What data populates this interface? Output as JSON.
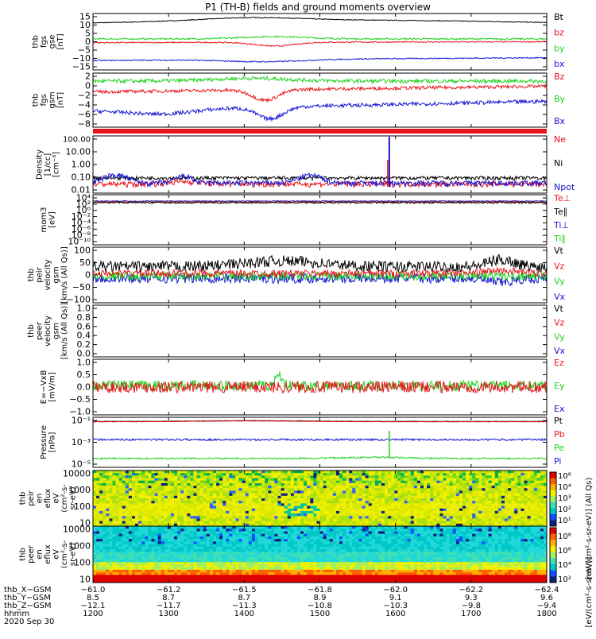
{
  "title": "P1 (TH-B) fields and ground moments overview",
  "colors": {
    "black": "#000000",
    "red": "#e8141b",
    "green": "#1ed21e",
    "blue": "#1414d2",
    "dkblue": "#2020a0",
    "lightgreen": "#33dd33",
    "frame": "#000000"
  },
  "panels": [
    {
      "id": "fgs",
      "ylabel": [
        "thb",
        "fgs",
        "gse",
        "[nT]"
      ],
      "ticks": [
        "15",
        "10",
        "5",
        "0",
        "−5",
        "−10",
        "−15"
      ],
      "legend": [
        {
          "text": "Bt",
          "color": "#000000"
        },
        {
          "text": "bz",
          "color": "#e8141b"
        },
        {
          "text": "by",
          "color": "#1ed21e"
        },
        {
          "text": "bx",
          "color": "#1414d2"
        }
      ]
    },
    {
      "id": "fgs_gsm",
      "ylabel": [
        "thb",
        "fgs",
        "gsm",
        "[nT]"
      ],
      "ticks": [
        "2",
        "0",
        "−2",
        "−4",
        "−6",
        "−8"
      ],
      "legend": [
        {
          "text": "Bz",
          "color": "#e8141b"
        },
        {
          "text": "By",
          "color": "#1ed21e"
        },
        {
          "text": "Bx",
          "color": "#1414d2"
        }
      ]
    },
    {
      "id": "density",
      "ylabel": [
        "Density",
        "[1/cc]",
        "[cm⁻³]"
      ],
      "ticks": [
        "100.00",
        "10.00",
        "1.00",
        "0.10",
        "0.01"
      ],
      "legend": [
        {
          "text": "Ne",
          "color": "#e8141b"
        },
        {
          "text": "Ni",
          "color": "#000000"
        },
        {
          "text": "Npot",
          "color": "#1414d2"
        }
      ]
    },
    {
      "id": "temp",
      "ylabel": [
        "mom3",
        "[eV]"
      ],
      "ticks": [
        "10⁴",
        "10²",
        "10⁰",
        "10⁻²",
        "10⁻⁴",
        "10⁻⁶",
        "10⁻⁸",
        "10⁻¹⁰"
      ],
      "legend": [
        {
          "text": "Te⊥",
          "color": "#e8141b"
        },
        {
          "text": "Te∥",
          "color": "#000000"
        },
        {
          "text": "Ti⊥",
          "color": "#1414d2"
        },
        {
          "text": "Ti∥",
          "color": "#1ed21e"
        }
      ]
    },
    {
      "id": "vel1",
      "ylabel": [
        "thb",
        "peir",
        "velocity",
        "gsm",
        "[km/s (All Qs)]"
      ],
      "ticks": [
        "100",
        "50",
        "0",
        "−50",
        "−100"
      ],
      "legend": [
        {
          "text": "Vt",
          "color": "#000000"
        },
        {
          "text": "Vz",
          "color": "#e8141b"
        },
        {
          "text": "Vy",
          "color": "#1ed21e"
        },
        {
          "text": "Vx",
          "color": "#1414d2"
        }
      ]
    },
    {
      "id": "vel2",
      "ylabel": [
        "thb",
        "peer",
        "velocity",
        "gsm",
        "[km/s (All Qs)]"
      ],
      "ticks": [
        "1.0",
        "0.8",
        "0.6",
        "0.4",
        "0.2",
        "0.0"
      ],
      "legend": [
        {
          "text": "Vt",
          "color": "#000000"
        },
        {
          "text": "Vz",
          "color": "#e8141b"
        },
        {
          "text": "Vy",
          "color": "#1ed21e"
        },
        {
          "text": "Vx",
          "color": "#1414d2"
        }
      ]
    },
    {
      "id": "efield",
      "ylabel": [
        "E=−VxB",
        "[mV/m]"
      ],
      "ticks": [
        "1.0",
        "0.5",
        "0.0",
        "−0.5",
        "−1.0"
      ],
      "legend": [
        {
          "text": "Ez",
          "color": "#e8141b"
        },
        {
          "text": "Ey",
          "color": "#1ed21e"
        },
        {
          "text": "Ex",
          "color": "#1414d2"
        }
      ]
    },
    {
      "id": "pressure",
      "ylabel": [
        "Pressure",
        "[nPa]"
      ],
      "ticks": [
        "10⁻¹",
        "10⁻³",
        "10⁻⁵"
      ],
      "legend": [
        {
          "text": "Pt",
          "color": "#000000"
        },
        {
          "text": "Pb",
          "color": "#e8141b"
        },
        {
          "text": "Pe",
          "color": "#1ed21e"
        },
        {
          "text": "Pi",
          "color": "#1414d2"
        }
      ]
    },
    {
      "id": "spec_ion",
      "ylabel": [
        "thb",
        "peir",
        "en",
        "eflux",
        "eV",
        "(cm²-s-",
        "sr-eV)"
      ],
      "ticks": [
        "10000",
        "1000",
        "100",
        "10"
      ]
    },
    {
      "id": "spec_ele",
      "ylabel": [
        "thb",
        "peer",
        "en",
        "eflux",
        "eV",
        "(cm²-s-",
        "sr-eV)"
      ],
      "ticks": [
        "10000",
        "1000",
        "100",
        "10"
      ]
    }
  ],
  "colorbar_upper": {
    "ticks": [
      "10⁶",
      "10⁴",
      "10³",
      "10²",
      "10¹"
    ],
    "label": "[eV/(cm²-s-sr-eV)] (All Qs)"
  },
  "colorbar_lower": {
    "ticks": [
      "10⁸",
      "10⁶",
      "10⁴",
      "10²"
    ]
  },
  "colorbar_label": "[eV/(cm²-s-sr-eV)]",
  "x_axis": {
    "row_labels": [
      "thb_X−GSM",
      "thb_Y−GSM",
      "thb_Z−GSM",
      "hhmm",
      "2020 Sep 30"
    ],
    "columns": [
      {
        "x": "−61.0",
        "y": "8.5",
        "z": "−12.1",
        "hhmm": "1200"
      },
      {
        "x": "−61.2",
        "y": "8.7",
        "z": "−11.7",
        "hhmm": "1300"
      },
      {
        "x": "−61.5",
        "y": "8.7",
        "z": "−11.3",
        "hhmm": "1400"
      },
      {
        "x": "−61.8",
        "y": "8.9",
        "z": "−10.8",
        "hhmm": "1500"
      },
      {
        "x": "−62.0",
        "y": "9.1",
        "z": "−10.3",
        "hhmm": "1600"
      },
      {
        "x": "−62.2",
        "y": "9.3",
        "z": "−9.8",
        "hhmm": "1700"
      },
      {
        "x": "−62.4",
        "y": "9.6",
        "z": "−9.4",
        "hhmm": "1800"
      }
    ]
  },
  "chart_data": [
    {
      "type": "line",
      "name": "thb fgs gse",
      "ylabel": "thb fgs gse [nT]",
      "x_hhmm": [
        1200,
        1300,
        1400,
        1500,
        1600,
        1700,
        1800
      ],
      "ylim": [
        -15,
        15
      ],
      "series": [
        {
          "name": "Bt",
          "values": [
            10.0,
            11.0,
            12.0,
            11.5,
            10.2,
            10.0,
            9.8
          ]
        },
        {
          "name": "bz",
          "values": [
            0.0,
            -1.0,
            -2.5,
            -1.0,
            -0.5,
            0.0,
            0.5
          ]
        },
        {
          "name": "by",
          "values": [
            1.5,
            1.5,
            2.5,
            2.0,
            1.5,
            1.2,
            1.0
          ]
        },
        {
          "name": "bx",
          "values": [
            -9.5,
            -10.0,
            -11.0,
            -10.5,
            -9.5,
            -9.0,
            -8.5
          ]
        }
      ]
    },
    {
      "type": "line",
      "name": "thb fgs gsm",
      "ylabel": "thb fgs gsm [nT]",
      "x_hhmm": [
        1200,
        1300,
        1400,
        1500,
        1600,
        1700,
        1800
      ],
      "ylim": [
        -9,
        2.5
      ],
      "series": [
        {
          "name": "Bz",
          "values": [
            -1.2,
            -1.8,
            -3.5,
            -1.5,
            -1.0,
            -0.8,
            -0.5
          ]
        },
        {
          "name": "By",
          "values": [
            0.8,
            0.8,
            1.5,
            1.2,
            1.0,
            0.8,
            0.5
          ]
        },
        {
          "name": "Bx",
          "values": [
            -5.5,
            -6.5,
            -8.0,
            -5.5,
            -4.5,
            -4.2,
            -4.2
          ]
        }
      ]
    },
    {
      "type": "line",
      "name": "Density",
      "ylabel": "Density [1/cc] [cm^-3]",
      "yscale": "log",
      "x_hhmm": [
        1200,
        1300,
        1400,
        1500,
        1600,
        1700,
        1800
      ],
      "series": [
        {
          "name": "Ne",
          "values": [
            0.02,
            0.02,
            0.02,
            0.015,
            0.02,
            0.02,
            0.02
          ]
        },
        {
          "name": "Ni",
          "values": [
            0.07,
            0.07,
            0.07,
            0.07,
            0.07,
            0.07,
            0.07
          ]
        },
        {
          "name": "Npot",
          "values": [
            0.05,
            0.1,
            0.04,
            0.1,
            0.02,
            0.03,
            0.03
          ]
        }
      ]
    },
    {
      "type": "line",
      "name": "thb peir velocity gsm",
      "ylabel": "thb peir velocity gsm [km/s (All Qs)]",
      "x_hhmm": [
        1200,
        1300,
        1400,
        1500,
        1600,
        1700,
        1800
      ],
      "ylim": [
        -100,
        100
      ],
      "series": [
        {
          "name": "Vt",
          "values": [
            30,
            35,
            40,
            35,
            35,
            40,
            45
          ]
        },
        {
          "name": "Vz",
          "values": [
            5,
            5,
            10,
            5,
            5,
            10,
            15
          ]
        },
        {
          "name": "Vy",
          "values": [
            0,
            -5,
            -10,
            -5,
            -5,
            -5,
            -5
          ]
        },
        {
          "name": "Vx",
          "values": [
            -10,
            -10,
            -15,
            -10,
            -10,
            -20,
            -30
          ]
        }
      ]
    },
    {
      "type": "line",
      "name": "E=-VxB",
      "ylabel": "E=-VxB [mV/m]",
      "x_hhmm": [
        1200,
        1300,
        1400,
        1500,
        1600,
        1700,
        1800
      ],
      "ylim": [
        -1.0,
        1.0
      ],
      "series": [
        {
          "name": "Ez",
          "values": [
            0.0,
            0.0,
            0.05,
            0.0,
            0.0,
            0.0,
            0.0
          ]
        },
        {
          "name": "Ey",
          "values": [
            0.0,
            0.0,
            0.1,
            0.0,
            0.0,
            0.0,
            0.0
          ]
        }
      ]
    },
    {
      "type": "line",
      "name": "Pressure",
      "ylabel": "Pressure [nPa]",
      "yscale": "log",
      "x_hhmm": [
        1200,
        1300,
        1400,
        1500,
        1600,
        1700,
        1800
      ],
      "series": [
        {
          "name": "Pt",
          "values": [
            0.08,
            0.1,
            0.12,
            0.1,
            0.08,
            0.08,
            0.08
          ]
        },
        {
          "name": "Pb",
          "values": [
            0.08,
            0.1,
            0.12,
            0.1,
            0.08,
            0.08,
            0.08
          ]
        },
        {
          "name": "Pe",
          "values": [
            1e-05,
            1e-05,
            1.2e-05,
            1e-05,
            1e-05,
            1.2e-05,
            1.2e-05
          ]
        },
        {
          "name": "Pi",
          "values": [
            0.001,
            0.001,
            0.0012,
            0.001,
            0.001,
            0.001,
            0.001
          ]
        }
      ]
    },
    {
      "type": "heatmap",
      "name": "thb peir en eflux",
      "ylabel": "thb peir en eflux eV (cm^2-s-sr-eV)",
      "yscale": "log",
      "ylim": [
        10,
        20000
      ]
    },
    {
      "type": "heatmap",
      "name": "thb peer en eflux",
      "ylabel": "thb peer en eflux eV (cm^2-s-sr-eV)",
      "yscale": "log",
      "ylim": [
        10,
        20000
      ]
    }
  ]
}
